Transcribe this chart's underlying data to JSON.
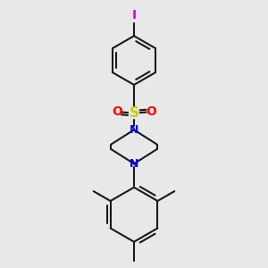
{
  "bg_color": "#e8e8e8",
  "bond_color": "#1a1a1a",
  "N_color": "#0000ee",
  "S_color": "#cccc00",
  "O_color": "#ff0000",
  "I_color": "#dd00dd",
  "bond_width": 1.5,
  "figsize": [
    3.0,
    3.0
  ],
  "dpi": 100,
  "xlim": [
    0.18,
    0.82
  ],
  "ylim": [
    0.02,
    0.98
  ]
}
